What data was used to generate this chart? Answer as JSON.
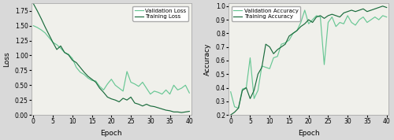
{
  "train_loss": [
    1.87,
    1.75,
    1.62,
    1.48,
    1.35,
    1.22,
    1.1,
    1.16,
    1.05,
    1.01,
    0.92,
    0.88,
    0.8,
    0.72,
    0.65,
    0.6,
    0.55,
    0.45,
    0.38,
    0.3,
    0.27,
    0.25,
    0.22,
    0.28,
    0.25,
    0.3,
    0.2,
    0.18,
    0.15,
    0.18,
    0.15,
    0.14,
    0.12,
    0.1,
    0.08,
    0.07,
    0.05,
    0.05,
    0.04,
    0.05,
    0.06
  ],
  "val_loss": [
    1.5,
    1.47,
    1.43,
    1.38,
    1.3,
    1.22,
    1.18,
    1.12,
    1.05,
    1.02,
    0.95,
    0.8,
    0.72,
    0.68,
    0.62,
    0.58,
    0.57,
    0.48,
    0.42,
    0.52,
    0.6,
    0.5,
    0.45,
    0.4,
    0.73,
    0.55,
    0.52,
    0.48,
    0.55,
    0.45,
    0.35,
    0.4,
    0.38,
    0.35,
    0.42,
    0.35,
    0.5,
    0.42,
    0.45,
    0.5,
    0.37
  ],
  "train_acc": [
    0.2,
    0.22,
    0.25,
    0.38,
    0.4,
    0.32,
    0.38,
    0.5,
    0.55,
    0.72,
    0.7,
    0.65,
    0.68,
    0.7,
    0.72,
    0.78,
    0.8,
    0.82,
    0.85,
    0.87,
    0.9,
    0.88,
    0.92,
    0.93,
    0.91,
    0.93,
    0.94,
    0.93,
    0.92,
    0.95,
    0.96,
    0.97,
    0.96,
    0.97,
    0.98,
    0.96,
    0.97,
    0.98,
    0.99,
    1.0,
    0.99
  ],
  "val_acc": [
    0.37,
    0.26,
    0.25,
    0.39,
    0.4,
    0.62,
    0.32,
    0.38,
    0.56,
    0.55,
    0.54,
    0.62,
    0.63,
    0.72,
    0.73,
    0.75,
    0.8,
    0.82,
    0.88,
    0.97,
    0.87,
    0.9,
    0.93,
    0.92,
    0.57,
    0.88,
    0.92,
    0.85,
    0.88,
    0.87,
    0.93,
    0.88,
    0.86,
    0.9,
    0.92,
    0.88,
    0.9,
    0.92,
    0.9,
    0.93,
    0.92
  ],
  "train_loss_color": "#1a6b3c",
  "val_loss_color": "#68c794",
  "train_acc_color": "#1a6b3c",
  "val_acc_color": "#68c794",
  "loss_ylim": [
    0.0,
    1.875
  ],
  "acc_ylim": [
    0.2,
    1.02
  ],
  "loss_yticks": [
    0.0,
    0.25,
    0.5,
    0.75,
    1.0,
    1.25,
    1.5,
    1.75
  ],
  "acc_yticks": [
    0.2,
    0.3,
    0.4,
    0.5,
    0.6,
    0.7,
    0.8,
    0.9,
    1.0
  ],
  "xlim": [
    -0.5,
    40.5
  ],
  "xticks": [
    0,
    5,
    10,
    15,
    20,
    25,
    30,
    35,
    40
  ],
  "xlabel": "Epoch",
  "loss_ylabel": "Loss",
  "acc_ylabel": "Accuracy",
  "loss_legend": [
    "Validation Loss",
    "Training Loss"
  ],
  "acc_legend": [
    "Validation Accuracy",
    "Training Accuracy"
  ],
  "bg_color": "#d9d9d9",
  "plot_bg_color": "#f0f0eb"
}
